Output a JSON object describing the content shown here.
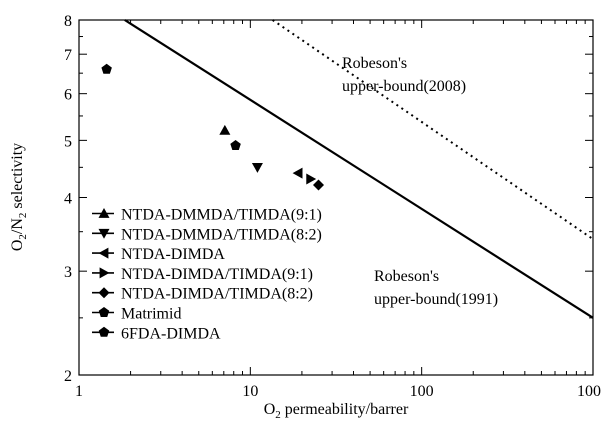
{
  "chart_data": {
    "type": "scatter",
    "x_scale": "log",
    "y_scale": "log",
    "xlim": [
      1,
      1000
    ],
    "ylim": [
      2,
      8
    ],
    "x_ticks": [
      {
        "value": 1,
        "label": "1"
      },
      {
        "value": 10,
        "label": "10"
      },
      {
        "value": 100,
        "label": "100"
      },
      {
        "value": 1000,
        "label": "1000"
      }
    ],
    "y_ticks": [
      {
        "value": 2,
        "label": "2"
      },
      {
        "value": 3,
        "label": "3"
      },
      {
        "value": 4,
        "label": "4"
      },
      {
        "value": 5,
        "label": "5"
      },
      {
        "value": 6,
        "label": "6"
      },
      {
        "value": 7,
        "label": "7"
      },
      {
        "value": 8,
        "label": "8"
      }
    ],
    "xlabel": {
      "main": "O",
      "sub": "2",
      "rest": " permeability/barrer"
    },
    "ylabel": {
      "p1": "O",
      "s1": "2",
      "p2": "/N",
      "s2": "2",
      "p3": " selectivity"
    },
    "grid": false,
    "legend_position": "bottom-left",
    "series": [
      {
        "name": "NTDA-DMMDA/TIMDA(9:1)",
        "marker": "triangle-up",
        "x": [
          7.1
        ],
        "y": [
          5.2
        ]
      },
      {
        "name": "NTDA-DMMDA/TIMDA(8:2)",
        "marker": "triangle-down",
        "x": [
          11.0
        ],
        "y": [
          4.5
        ]
      },
      {
        "name": "NTDA-DIMDA",
        "marker": "triangle-left",
        "x": [
          19.0
        ],
        "y": [
          4.4
        ]
      },
      {
        "name": "NTDA-DIMDA/TIMDA(9:1)",
        "marker": "triangle-right",
        "x": [
          22.5
        ],
        "y": [
          4.3
        ]
      },
      {
        "name": "NTDA-DIMDA/TIMDA(8:2)",
        "marker": "diamond",
        "x": [
          25.0
        ],
        "y": [
          4.2
        ]
      },
      {
        "name": "Matrimid",
        "marker": "pentagon",
        "x": [
          8.2
        ],
        "y": [
          4.9
        ]
      },
      {
        "name": "6FDA-DIMDA",
        "marker": "pentagon",
        "x": [
          1.45
        ],
        "y": [
          6.6
        ]
      }
    ],
    "lines": [
      {
        "label_line1": "Robeson's",
        "label_line2": "upper-bound(1991)",
        "style": "solid",
        "x": [
          1.85,
          1000
        ],
        "y": [
          8.0,
          2.5
        ]
      },
      {
        "label_line1": "Robeson's",
        "label_line2": "upper-bound(2008)",
        "style": "dotted",
        "x": [
          13.5,
          1000
        ],
        "y": [
          8.0,
          3.4
        ]
      }
    ]
  }
}
